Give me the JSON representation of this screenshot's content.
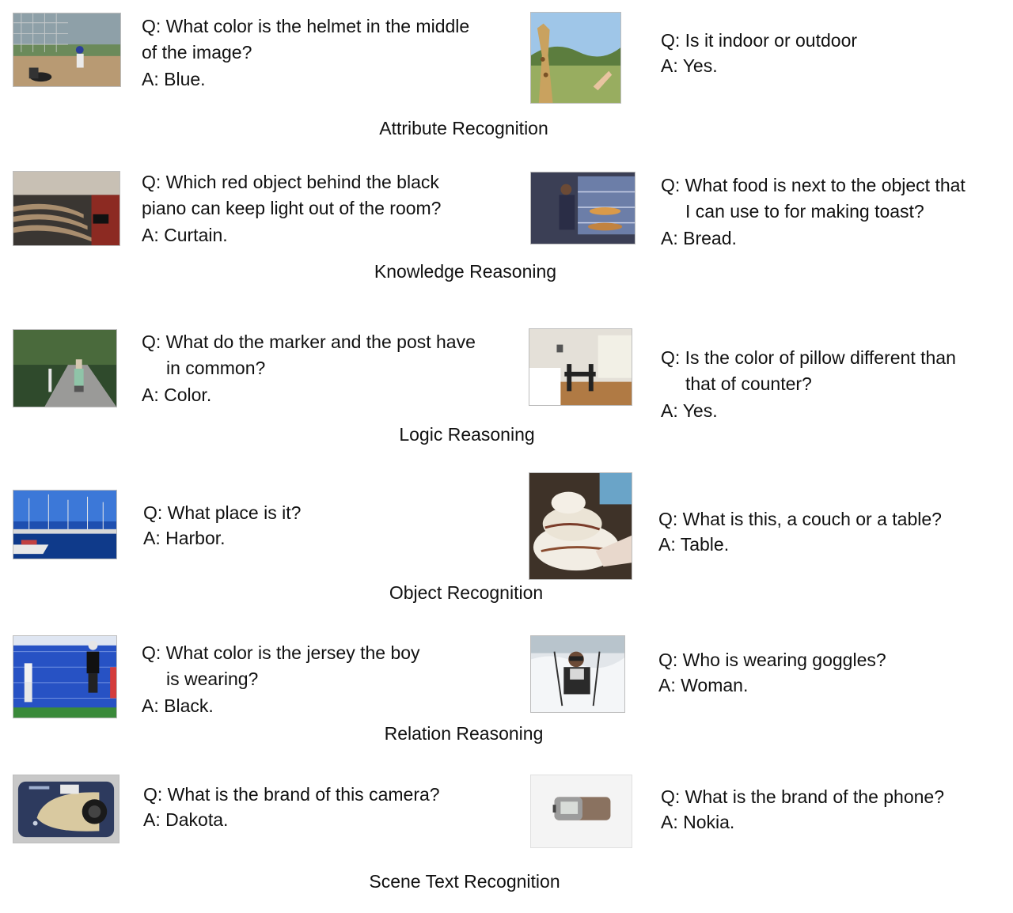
{
  "sections": [
    {
      "category": "Attribute Recognition",
      "left": {
        "image_icon": "baseball-photo",
        "q_lines": [
          "Q: What color is the helmet in the middle",
          "of the image?"
        ],
        "answer": "A: Blue."
      },
      "right": {
        "image_icon": "giraffe-photo",
        "q_lines": [
          "Q: Is it indoor or outdoor"
        ],
        "answer": "A: Yes."
      }
    },
    {
      "category": "Knowledge Reasoning",
      "left": {
        "image_icon": "auditorium-photo",
        "q_lines": [
          "Q: Which red object behind the black",
          "piano can keep light out of the room?"
        ],
        "answer": "A: Curtain."
      },
      "right": {
        "image_icon": "kitchen-photo",
        "q_lines": [
          "Q: What food is next to the object that",
          "I can use to for making toast?"
        ],
        "answer": "A: Bread."
      }
    },
    {
      "category": "Logic Reasoning",
      "left": {
        "image_icon": "skateboard-road-photo",
        "q_lines": [
          "Q: What do the marker and the post have",
          "in common?"
        ],
        "answer": "A: Color."
      },
      "right": {
        "image_icon": "dining-room-photo",
        "q_lines": [
          "Q: Is the color of pillow different than",
          "that of counter?"
        ],
        "answer": "A: Yes."
      }
    },
    {
      "category": "Object Recognition",
      "left": {
        "image_icon": "harbor-photo",
        "q_lines": [
          "Q: What place is it?"
        ],
        "answer": "A: Harbor."
      },
      "right": {
        "image_icon": "cake-table-photo",
        "q_lines": [
          "Q: What is this, a couch or a table?"
        ],
        "answer": "A: Table."
      }
    },
    {
      "category": "Relation Reasoning",
      "left": {
        "image_icon": "soccer-photo",
        "q_lines": [
          "Q: What color is the jersey the boy",
          "is wearing?"
        ],
        "answer": "A: Black."
      },
      "right": {
        "image_icon": "skier-photo",
        "q_lines": [
          "Q: Who is wearing goggles?"
        ],
        "answer": "A: Woman."
      }
    },
    {
      "category": "Scene Text Recognition",
      "left": {
        "image_icon": "camera-photo",
        "q_lines": [
          "Q: What is the brand of this camera?"
        ],
        "answer": "A: Dakota."
      },
      "right": {
        "image_icon": "phone-photo",
        "q_lines": [
          "Q: What is the brand of the phone?"
        ],
        "answer": "A: Nokia."
      }
    }
  ]
}
